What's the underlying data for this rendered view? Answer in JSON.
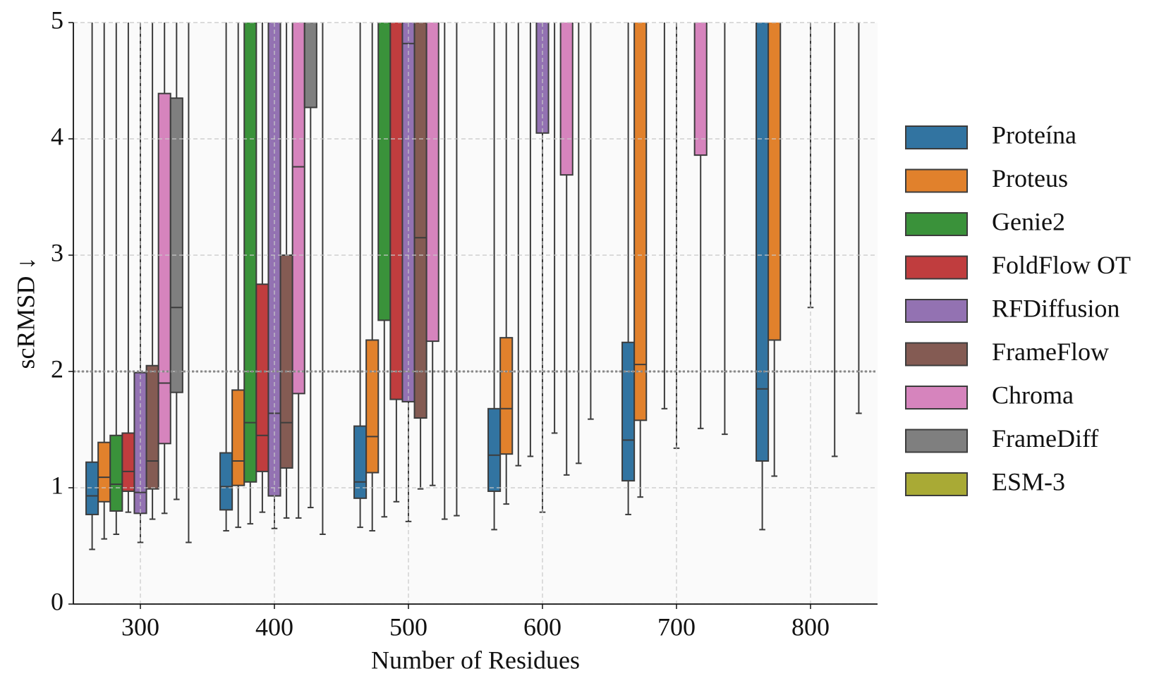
{
  "chart_data": {
    "type": "box",
    "xlabel": "Number of Residues",
    "ylabel": "scRMSD ↓",
    "categories": [
      300,
      400,
      500,
      600,
      700,
      800
    ],
    "ylim": [
      0,
      5
    ],
    "yticks": [
      0,
      1,
      2,
      3,
      4,
      5
    ],
    "grid": true,
    "hline": 2,
    "legend": "right",
    "series": [
      {
        "name": "Proteína",
        "color": "#3274a1",
        "values": [
          [
            0.47,
            0.77,
            0.93,
            1.22,
            null
          ],
          [
            0.63,
            0.81,
            1.01,
            1.3,
            null
          ],
          [
            0.66,
            0.91,
            1.05,
            1.53,
            null
          ],
          [
            0.64,
            0.97,
            1.28,
            1.68,
            null
          ],
          [
            0.77,
            1.06,
            1.41,
            2.25,
            null
          ],
          [
            0.64,
            1.23,
            1.85,
            null,
            null
          ]
        ]
      },
      {
        "name": "Proteus",
        "color": "#e1812c",
        "values": [
          [
            0.56,
            0.88,
            1.09,
            1.39,
            null
          ],
          [
            0.66,
            1.02,
            1.23,
            1.84,
            null
          ],
          [
            0.63,
            1.13,
            1.44,
            2.27,
            null
          ],
          [
            0.86,
            1.29,
            1.68,
            2.29,
            null
          ],
          [
            0.92,
            1.58,
            2.06,
            null,
            null
          ],
          [
            1.1,
            2.27,
            null,
            null,
            null
          ]
        ]
      },
      {
        "name": "Genie2",
        "color": "#3a923a",
        "values": [
          [
            0.6,
            0.8,
            1.03,
            1.45,
            null
          ],
          [
            0.69,
            1.05,
            1.56,
            null,
            null
          ],
          [
            0.75,
            2.44,
            null,
            null,
            null
          ],
          [
            1.19,
            null,
            null,
            null,
            null
          ],
          [
            null,
            null,
            null,
            null,
            null
          ],
          [
            null,
            null,
            null,
            null,
            null
          ]
        ]
      },
      {
        "name": "FoldFlow OT",
        "color": "#c03d3e",
        "values": [
          [
            0.79,
            0.97,
            1.14,
            1.47,
            null
          ],
          [
            0.79,
            1.14,
            1.45,
            2.75,
            null
          ],
          [
            0.88,
            1.76,
            null,
            null,
            null
          ],
          [
            1.27,
            null,
            null,
            null,
            null
          ],
          [
            1.68,
            null,
            null,
            null,
            null
          ],
          [
            null,
            null,
            null,
            null,
            null
          ]
        ]
      },
      {
        "name": "RFDiffusion",
        "color": "#9372b2",
        "values": [
          [
            0.53,
            0.78,
            0.96,
            1.99,
            null
          ],
          [
            0.65,
            0.93,
            1.64,
            null,
            null
          ],
          [
            0.71,
            1.74,
            4.82,
            null,
            null
          ],
          [
            0.79,
            4.05,
            null,
            null,
            null
          ],
          [
            1.34,
            null,
            null,
            null,
            null
          ],
          [
            2.55,
            null,
            null,
            null,
            null
          ]
        ]
      },
      {
        "name": "FrameFlow",
        "color": "#845b53",
        "values": [
          [
            0.73,
            0.99,
            1.23,
            2.05,
            null
          ],
          [
            0.74,
            1.17,
            1.56,
            3.0,
            null
          ],
          [
            0.99,
            1.6,
            3.15,
            null,
            null
          ],
          [
            1.47,
            null,
            null,
            null,
            null
          ],
          [
            null,
            null,
            null,
            null,
            null
          ],
          [
            null,
            null,
            null,
            null,
            null
          ]
        ]
      },
      {
        "name": "Chroma",
        "color": "#d684bd",
        "values": [
          [
            0.78,
            1.38,
            1.9,
            4.39,
            null
          ],
          [
            0.74,
            1.81,
            3.76,
            null,
            null
          ],
          [
            1.02,
            2.26,
            null,
            null,
            null
          ],
          [
            1.11,
            3.69,
            null,
            null,
            null
          ],
          [
            1.51,
            3.86,
            null,
            null,
            null
          ],
          [
            1.27,
            null,
            null,
            null,
            null
          ]
        ]
      },
      {
        "name": "FrameDiff",
        "color": "#7f7f7f",
        "values": [
          [
            0.9,
            1.82,
            2.55,
            4.35,
            null
          ],
          [
            0.83,
            4.27,
            null,
            null,
            null
          ],
          [
            0.73,
            null,
            null,
            null,
            null
          ],
          [
            1.21,
            null,
            null,
            null,
            null
          ],
          [
            null,
            null,
            null,
            null,
            null
          ],
          [
            null,
            null,
            null,
            null,
            null
          ]
        ]
      },
      {
        "name": "ESM-3",
        "color": "#a9aa35",
        "values": [
          [
            0.53,
            null,
            null,
            null,
            null
          ],
          [
            0.6,
            null,
            null,
            null,
            null
          ],
          [
            0.76,
            null,
            null,
            null,
            null
          ],
          [
            1.59,
            null,
            null,
            null,
            null
          ],
          [
            1.46,
            null,
            null,
            null,
            null
          ],
          [
            1.64,
            null,
            null,
            null,
            null
          ]
        ]
      }
    ]
  }
}
